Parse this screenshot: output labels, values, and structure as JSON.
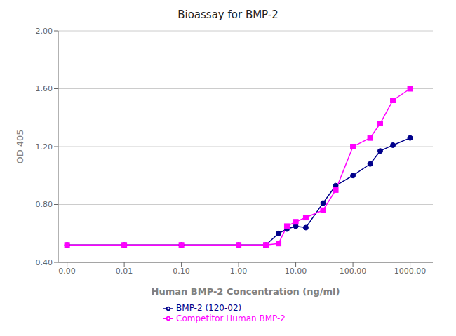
{
  "chart_data": {
    "type": "line",
    "title": "Bioassay for BMP-2",
    "xlabel": "Human BMP-2 Concentration (ng/ml)",
    "ylabel": "OD 405",
    "log": "x",
    "grid": "y",
    "legend": "bottom",
    "x": [
      0.001,
      0.01,
      0.1,
      1.0,
      3.0,
      5.0,
      7.0,
      10.0,
      15.0,
      30.0,
      50.0,
      100.0,
      200.0,
      300.0,
      500.0,
      1000.0
    ],
    "xlim": [
      0.0007,
      2500
    ],
    "xticks": [
      {
        "value": 0.001,
        "label": "0.00"
      },
      0.01,
      {
        "value": 0.1,
        "label": "0.10"
      },
      {
        "value": 1,
        "label": "1.00"
      },
      {
        "value": 10,
        "label": "10.00"
      },
      {
        "value": 100,
        "label": "100.00"
      },
      {
        "value": 1000,
        "label": "1000.00"
      }
    ],
    "ylim": [
      0.4,
      2.0
    ],
    "yticks": [
      {
        "value": 0.4,
        "label": "0.40"
      },
      {
        "value": 0.8,
        "label": "0.80"
      },
      {
        "value": 1.2,
        "label": "1.20"
      },
      {
        "value": 1.6,
        "label": "1.60"
      },
      {
        "value": 2.0,
        "label": "2.00"
      }
    ],
    "series": [
      {
        "name": "BMP-2 (120-02)",
        "color": "#00008B",
        "marker": "circle",
        "values": [
          0.52,
          0.52,
          0.52,
          0.52,
          0.52,
          0.6,
          0.63,
          0.65,
          0.64,
          0.81,
          0.93,
          1.0,
          1.08,
          1.17,
          1.21,
          1.26
        ]
      },
      {
        "name": "Competitor Human BMP-2",
        "color": "#FF00FF",
        "marker": "square",
        "values": [
          0.52,
          0.52,
          0.52,
          0.52,
          0.52,
          0.53,
          0.65,
          0.68,
          0.71,
          0.76,
          0.9,
          1.2,
          1.26,
          1.36,
          1.52,
          1.6
        ]
      }
    ]
  }
}
